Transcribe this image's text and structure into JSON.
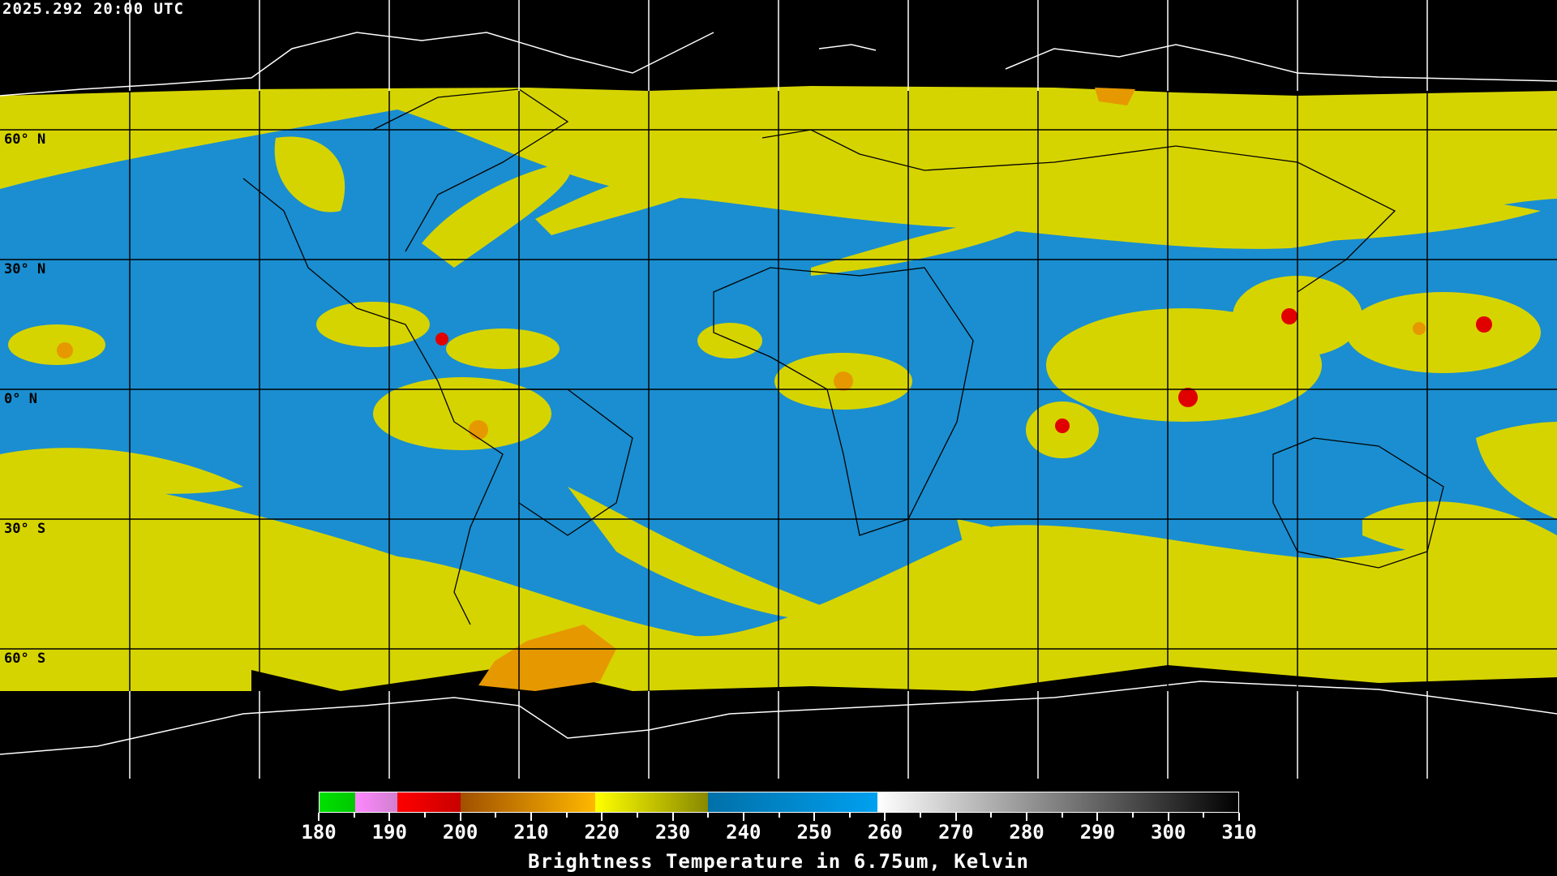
{
  "header": {
    "timestamp": "2025.292 20:00 UTC"
  },
  "map": {
    "projection": "equirectangular",
    "grid_spacing_degrees": 30,
    "lat_labels": [
      "60° N",
      "30° N",
      "0° N",
      "30° S",
      "60° S"
    ],
    "colors": {
      "background": "#000000",
      "coastline_land": "#000000",
      "coastline_space": "#ffffff",
      "dry_blue": "#1a8ed0",
      "moist_yellow": "#d6d400",
      "cold_orange": "#e89a00",
      "very_cold_red": "#e00000"
    }
  },
  "colorbar": {
    "title": "Brightness Temperature in 6.75um, Kelvin",
    "min": 180,
    "max": 310,
    "tick_labels": [
      "180",
      "190",
      "200",
      "210",
      "220",
      "230",
      "240",
      "250",
      "260",
      "270",
      "280",
      "290",
      "300",
      "310"
    ],
    "segments": [
      {
        "from": 180,
        "to": 185,
        "start": "#00e000",
        "end": "#00c800"
      },
      {
        "from": 185,
        "to": 191,
        "start": "#ff88ff",
        "end": "#d080d0"
      },
      {
        "from": 191,
        "to": 200,
        "start": "#ff0000",
        "end": "#c80000"
      },
      {
        "from": 200,
        "to": 219,
        "start": "#a05000",
        "end": "#ffb800"
      },
      {
        "from": 219,
        "to": 235,
        "start": "#ffff00",
        "end": "#888800"
      },
      {
        "from": 235,
        "to": 259,
        "start": "#0070a8",
        "end": "#00a0f0"
      },
      {
        "from": 259,
        "to": 310,
        "start": "#ffffff",
        "end": "#000000"
      }
    ]
  }
}
